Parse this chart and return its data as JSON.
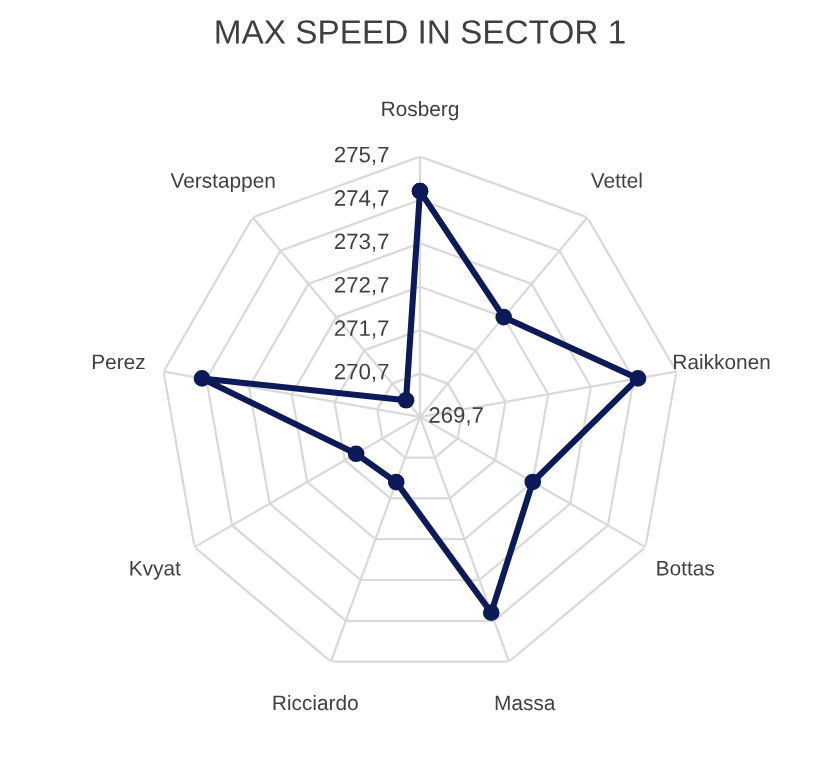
{
  "chart_data": {
    "type": "radar",
    "title": "MAX SPEED IN SECTOR 1",
    "categories": [
      "Rosberg",
      "Vettel",
      "Raikkonen",
      "Bottas",
      "Massa",
      "Ricciardo",
      "Kvyat",
      "Perez",
      "Verstappen"
    ],
    "series": [
      {
        "color": "#0c1a5a",
        "values": [
          274.9,
          272.7,
          274.8,
          272.7,
          274.5,
          271.3,
          271.4,
          274.8,
          270.2
        ]
      }
    ],
    "ylim": [
      269.7,
      275.7
    ],
    "yticks": [
      {
        "value": 269.7,
        "label": "269,7"
      },
      {
        "value": 270.7,
        "label": "270,7"
      },
      {
        "value": 271.7,
        "label": "271,7"
      },
      {
        "value": 272.7,
        "label": "272,7"
      },
      {
        "value": 273.7,
        "label": "273,7"
      },
      {
        "value": 274.7,
        "label": "274,7"
      },
      {
        "value": 275.7,
        "label": "275,7"
      }
    ],
    "grid": true,
    "marker": "circle",
    "line_style": "solid",
    "legend": false
  }
}
